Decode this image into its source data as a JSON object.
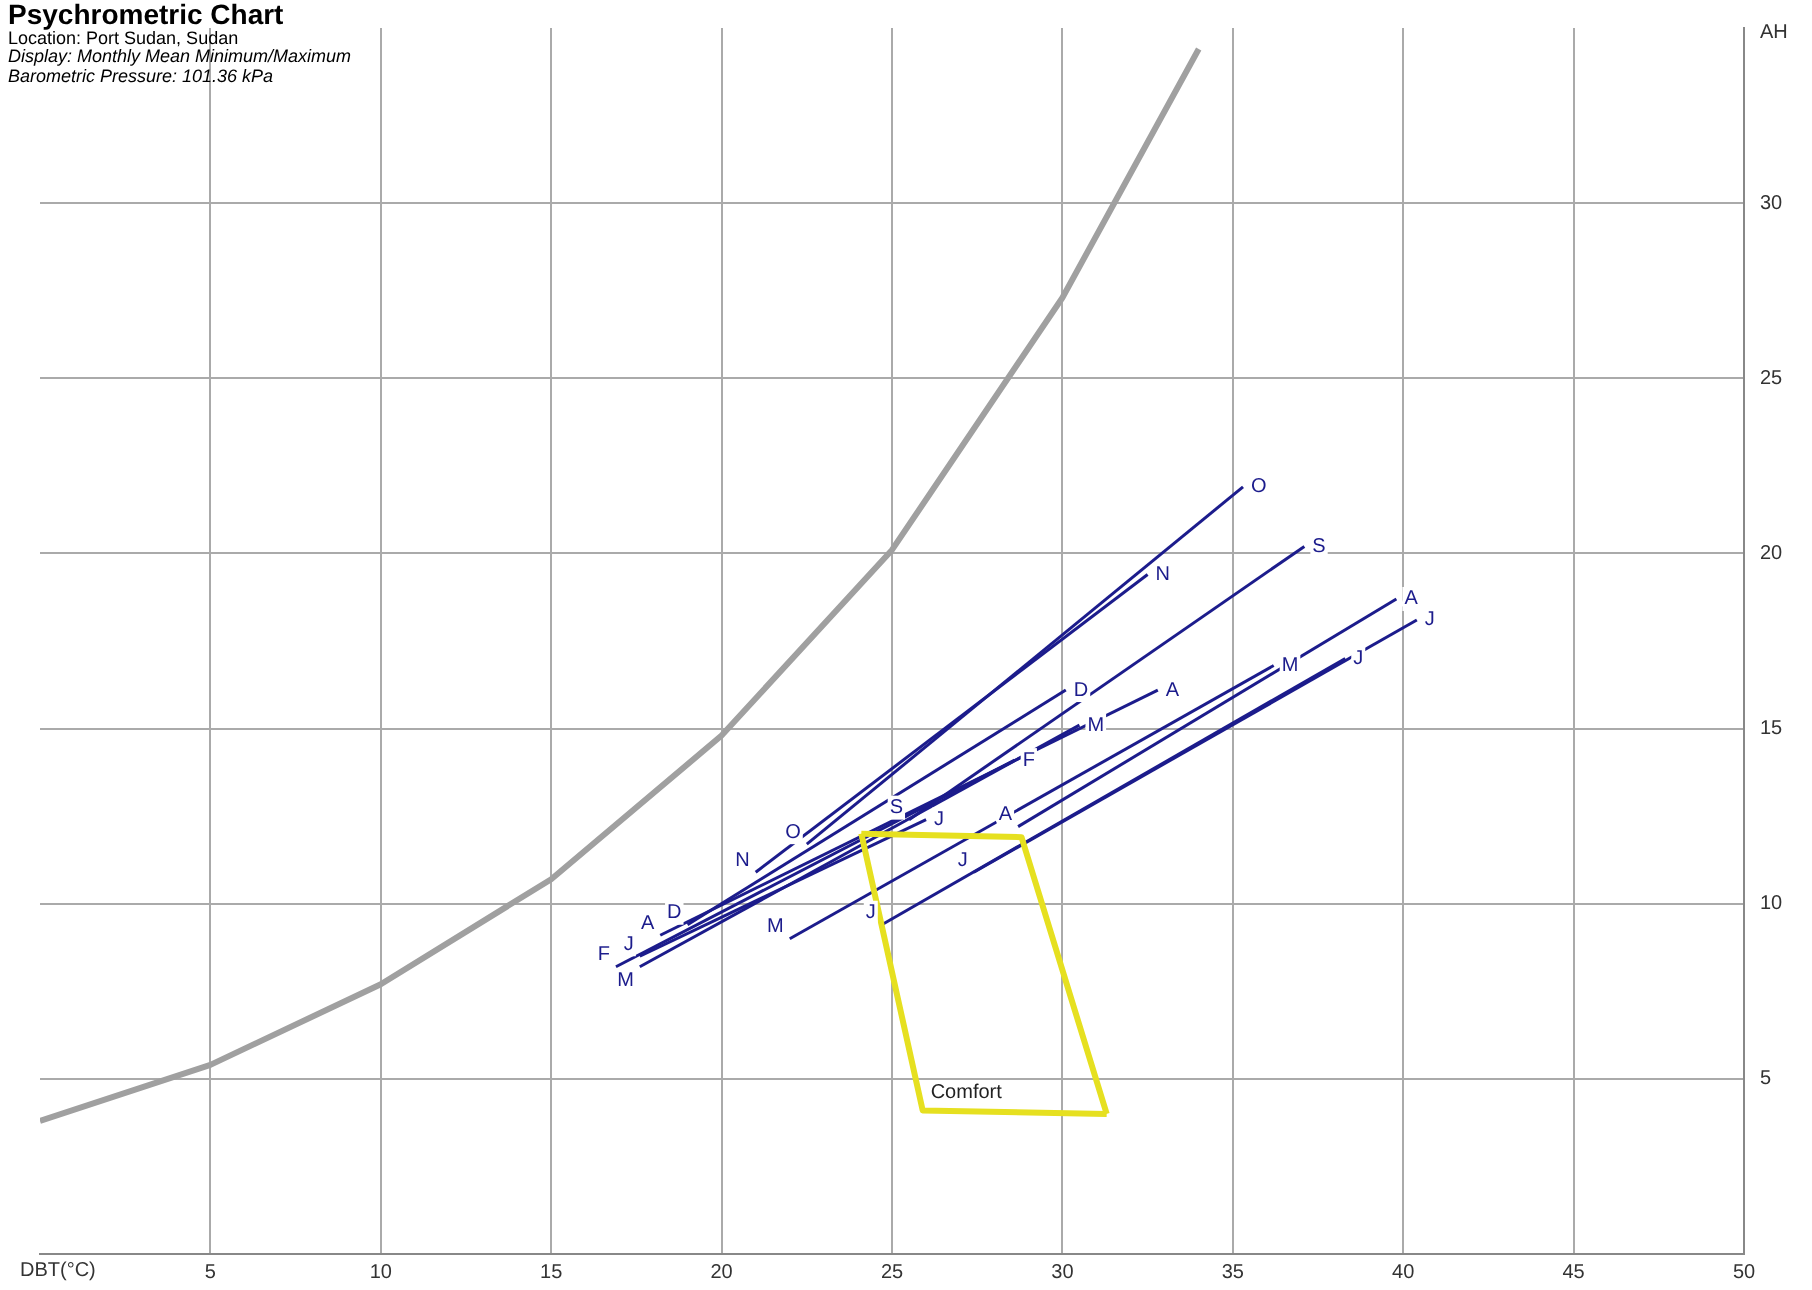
{
  "chart_data": {
    "type": "line",
    "title": "Psychrometric Chart",
    "annotations": [
      "Location: Port Sudan, Sudan",
      "Display: Monthly Mean Minimum/Maximum",
      "Barometric Pressure: 101.36 kPa"
    ],
    "xlabel": "DBT(°C)",
    "ylabel": "AH",
    "xlim": [
      0,
      50
    ],
    "xticks": [
      5,
      10,
      15,
      20,
      25,
      30,
      35,
      40,
      45,
      50
    ],
    "ylim": [
      0,
      35
    ],
    "yticks": [
      5,
      10,
      15,
      20,
      25,
      30
    ],
    "grid": true,
    "legend": false,
    "marker": "none",
    "line_style": "solid",
    "series": [
      {
        "color": "#a0a0a0",
        "x": [
          0,
          5,
          10,
          15,
          20,
          25,
          30,
          34
        ],
        "values": [
          3.8,
          5.4,
          7.7,
          10.7,
          14.8,
          20.1,
          27.3,
          34.4
        ]
      },
      {
        "color": "#e6e020",
        "x": [
          24.1,
          28.8,
          31.3
        ],
        "values": [
          12.0,
          11.9,
          4.0
        ]
      },
      {
        "name": "Comfort",
        "color": "#e6e020",
        "x": [
          24.1,
          25.9,
          31.3
        ],
        "values": [
          12.0,
          4.1,
          4.0
        ]
      },
      {
        "name": "J",
        "color": "#1c1c8c",
        "x": [
          17.6,
          26.0
        ],
        "values": [
          8.5,
          12.4
        ]
      },
      {
        "name": "F",
        "color": "#1c1c8c",
        "x": [
          16.9,
          28.6
        ],
        "values": [
          8.2,
          14.1
        ]
      },
      {
        "name": "M",
        "color": "#1c1c8c",
        "x": [
          17.6,
          30.5
        ],
        "values": [
          8.2,
          15.1
        ]
      },
      {
        "name": "A",
        "color": "#1c1c8c",
        "x": [
          18.2,
          32.8
        ],
        "values": [
          9.1,
          16.1
        ]
      },
      {
        "name": "M",
        "color": "#1c1c8c",
        "x": [
          22.0,
          36.2
        ],
        "values": [
          9.0,
          16.8
        ]
      },
      {
        "name": "J",
        "color": "#1c1c8c",
        "x": [
          24.7,
          38.3
        ],
        "values": [
          9.4,
          17.0
        ]
      },
      {
        "name": "J",
        "color": "#1c1c8c",
        "x": [
          27.4,
          40.4
        ],
        "values": [
          10.9,
          18.1
        ]
      },
      {
        "name": "A",
        "color": "#1c1c8c",
        "x": [
          28.7,
          39.8
        ],
        "values": [
          12.2,
          18.7
        ]
      },
      {
        "name": "S",
        "color": "#1c1c8c",
        "x": [
          25.5,
          37.1
        ],
        "values": [
          12.4,
          20.2
        ]
      },
      {
        "name": "O",
        "color": "#1c1c8c",
        "x": [
          22.5,
          35.3
        ],
        "values": [
          11.7,
          21.9
        ]
      },
      {
        "name": "N",
        "color": "#1c1c8c",
        "x": [
          21.0,
          32.5
        ],
        "values": [
          10.9,
          19.4
        ]
      },
      {
        "name": "D",
        "color": "#1c1c8c",
        "x": [
          19.0,
          30.1
        ],
        "values": [
          9.4,
          16.1
        ]
      }
    ]
  }
}
